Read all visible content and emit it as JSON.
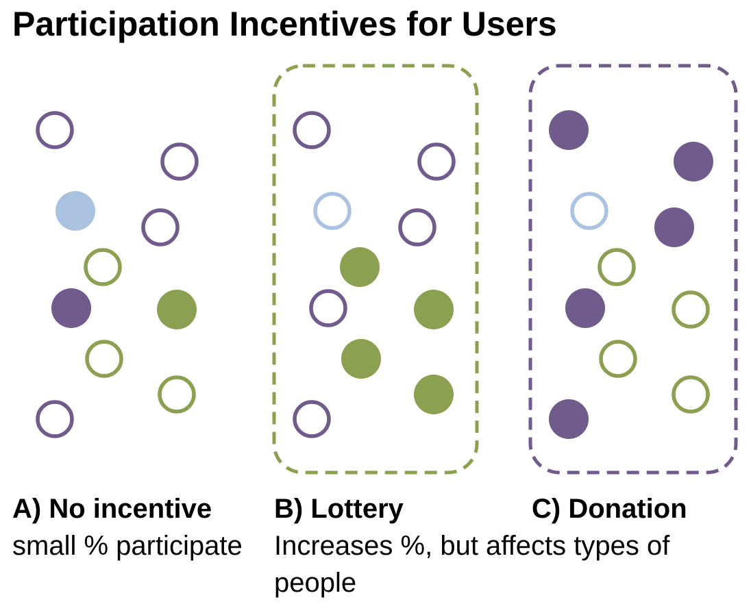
{
  "title": "Participation Incentives for Users",
  "colors": {
    "purple": "#705b8c",
    "green": "#8ca052",
    "light_blue": "#a9c3e1",
    "green_border": "#8ca052",
    "purple_border": "#705b8c"
  },
  "panels": [
    {
      "label": "A) No incentive",
      "description": "small % participate",
      "boxed": false,
      "circles": [
        {
          "color": "purple",
          "filled": false
        },
        {
          "color": "purple",
          "filled": false
        },
        {
          "color": "light_blue",
          "filled": true
        },
        {
          "color": "purple",
          "filled": false
        },
        {
          "color": "green",
          "filled": false
        },
        {
          "color": "purple",
          "filled": true
        },
        {
          "color": "green",
          "filled": true
        },
        {
          "color": "green",
          "filled": false
        },
        {
          "color": "green",
          "filled": false
        },
        {
          "color": "purple",
          "filled": false
        }
      ]
    },
    {
      "label": "B) Lottery",
      "description": "Increases %, but affects types of people",
      "boxed": true,
      "box_color": "green_border",
      "circles": [
        {
          "color": "purple",
          "filled": false
        },
        {
          "color": "purple",
          "filled": false
        },
        {
          "color": "light_blue",
          "filled": false
        },
        {
          "color": "purple",
          "filled": false
        },
        {
          "color": "green",
          "filled": true
        },
        {
          "color": "purple",
          "filled": false
        },
        {
          "color": "green",
          "filled": true
        },
        {
          "color": "green",
          "filled": true
        },
        {
          "color": "green",
          "filled": true
        },
        {
          "color": "purple",
          "filled": false
        }
      ]
    },
    {
      "label": "C) Donation",
      "description": "",
      "boxed": true,
      "box_color": "purple_border",
      "circles": [
        {
          "color": "purple",
          "filled": true
        },
        {
          "color": "purple",
          "filled": true
        },
        {
          "color": "light_blue",
          "filled": false
        },
        {
          "color": "purple",
          "filled": true
        },
        {
          "color": "green",
          "filled": false
        },
        {
          "color": "purple",
          "filled": true
        },
        {
          "color": "green",
          "filled": false
        },
        {
          "color": "green",
          "filled": false
        },
        {
          "color": "green",
          "filled": false
        },
        {
          "color": "purple",
          "filled": true
        }
      ]
    }
  ]
}
